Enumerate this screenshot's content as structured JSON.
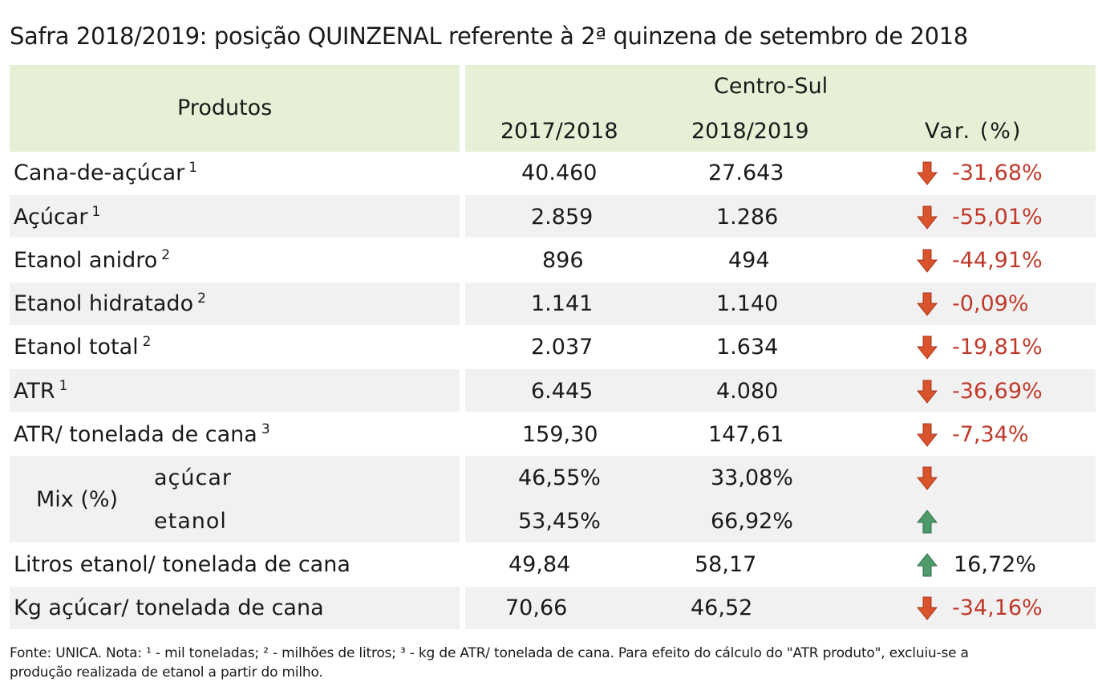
{
  "title": "Safra 2018/2019: posição QUINZENAL referente à 2ª quinzena de setembro de 2018",
  "header": {
    "produtos": "Produtos",
    "region": "Centro-Sul",
    "col1": "2017/2018",
    "col2": "2018/2019",
    "col3": "Var. (%)"
  },
  "rows": [
    {
      "label": "Cana-de-açúcar",
      "note": "1",
      "v1": "40.460",
      "v2": "27.643",
      "var": "-31,68%",
      "dir": "down"
    },
    {
      "label": "Açúcar",
      "note": "1",
      "v1": "2.859",
      "v2": "1.286",
      "var": "-55,01%",
      "dir": "down"
    },
    {
      "label": "Etanol anidro",
      "note": "2",
      "v1": "896",
      "v2": "494",
      "var": "-44,91%",
      "dir": "down"
    },
    {
      "label": "Etanol hidratado",
      "note": "2",
      "v1": "1.141",
      "v2": "1.140",
      "var": "-0,09%",
      "dir": "down"
    },
    {
      "label": "Etanol total",
      "note": "2",
      "v1": "2.037",
      "v2": "1.634",
      "var": "-19,81%",
      "dir": "down"
    },
    {
      "label": "ATR",
      "note": "1",
      "v1": "6.445",
      "v2": "4.080",
      "var": "-36,69%",
      "dir": "down"
    },
    {
      "label": "ATR/ tonelada de cana",
      "note": "3",
      "v1": "159,30",
      "v2": "147,61",
      "var": "-7,34%",
      "dir": "down"
    }
  ],
  "mix": {
    "label": "Mix (%)",
    "acucar": {
      "label": "açúcar",
      "v1": "46,55%",
      "v2": "33,08%",
      "dir": "down"
    },
    "etanol": {
      "label": "etanol",
      "v1": "53,45%",
      "v2": "66,92%",
      "dir": "up"
    }
  },
  "litros": {
    "label": "Litros etanol/ tonelada de cana",
    "v1": "49,84",
    "v2": "58,17",
    "var": "16,72%",
    "dir": "up"
  },
  "kg": {
    "label": "Kg açúcar/ tonelada de cana",
    "v1": "70,66",
    "v2": "46,52",
    "var": "-34,16%",
    "dir": "down"
  },
  "footnote_line1": "Fonte: UNICA. Nota: ¹ - mil toneladas; ² - milhões de litros; ³ - kg de ATR/ tonelada de cana. Para efeito do cálculo do \"ATR produto\", excluiu-se a",
  "footnote_line2": "produção realizada de etanol a partir do milho.",
  "colors": {
    "header_bg": "#e6f0d6",
    "band_bg": "#f1f1f1",
    "down_arrow": "#d9532c",
    "up_arrow": "#4e9a6a",
    "negative_text": "#c0392b"
  }
}
